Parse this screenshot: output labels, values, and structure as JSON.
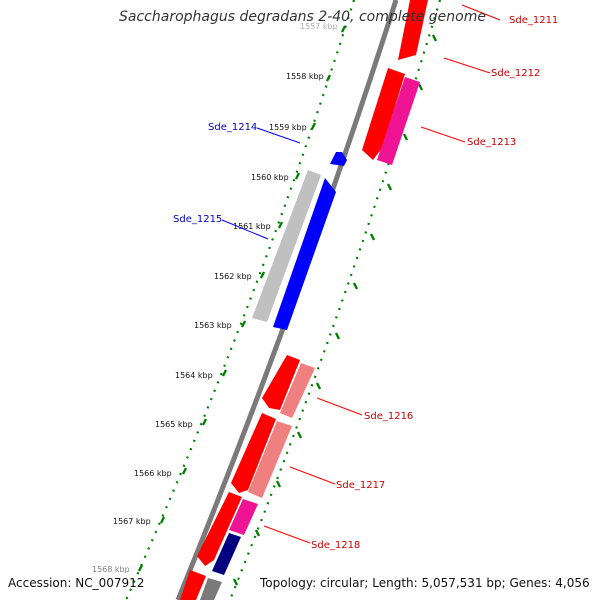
{
  "title": "Saccharophagus degradans 2-40, complete genome",
  "footer": {
    "accession": "Accession: NC_007912",
    "summary": "Topology: circular; Length: 5,057,531 bp; Genes: 4,056"
  },
  "colors": {
    "forward": "#ff0000",
    "forward_light": "#f08080",
    "pink": "#ee1493",
    "reverse": "#0000ff",
    "navy": "#000080",
    "gray": "#c0c0c0",
    "backbone": "#808080",
    "ticks": "#008000",
    "label_red": "#cc0000",
    "label_blue": "#0000cc"
  },
  "kbp_ticks": [
    "1557 kbp",
    "1558 kbp",
    "1559 kbp",
    "1560 kbp",
    "1561 kbp",
    "1562 kbp",
    "1563 kbp",
    "1564 kbp",
    "1565 kbp",
    "1566 kbp",
    "1567 kbp",
    "1568 kbp"
  ],
  "genes": [
    {
      "label": "Sde_1211",
      "color": "red"
    },
    {
      "label": "Sde_1212",
      "color": "red"
    },
    {
      "label": "Sde_1213",
      "color": "red"
    },
    {
      "label": "Sde_1214",
      "color": "blue"
    },
    {
      "label": "Sde_1215",
      "color": "blue"
    },
    {
      "label": "Sde_1216",
      "color": "red"
    },
    {
      "label": "Sde_1217",
      "color": "red"
    },
    {
      "label": "Sde_1218",
      "color": "red"
    }
  ]
}
